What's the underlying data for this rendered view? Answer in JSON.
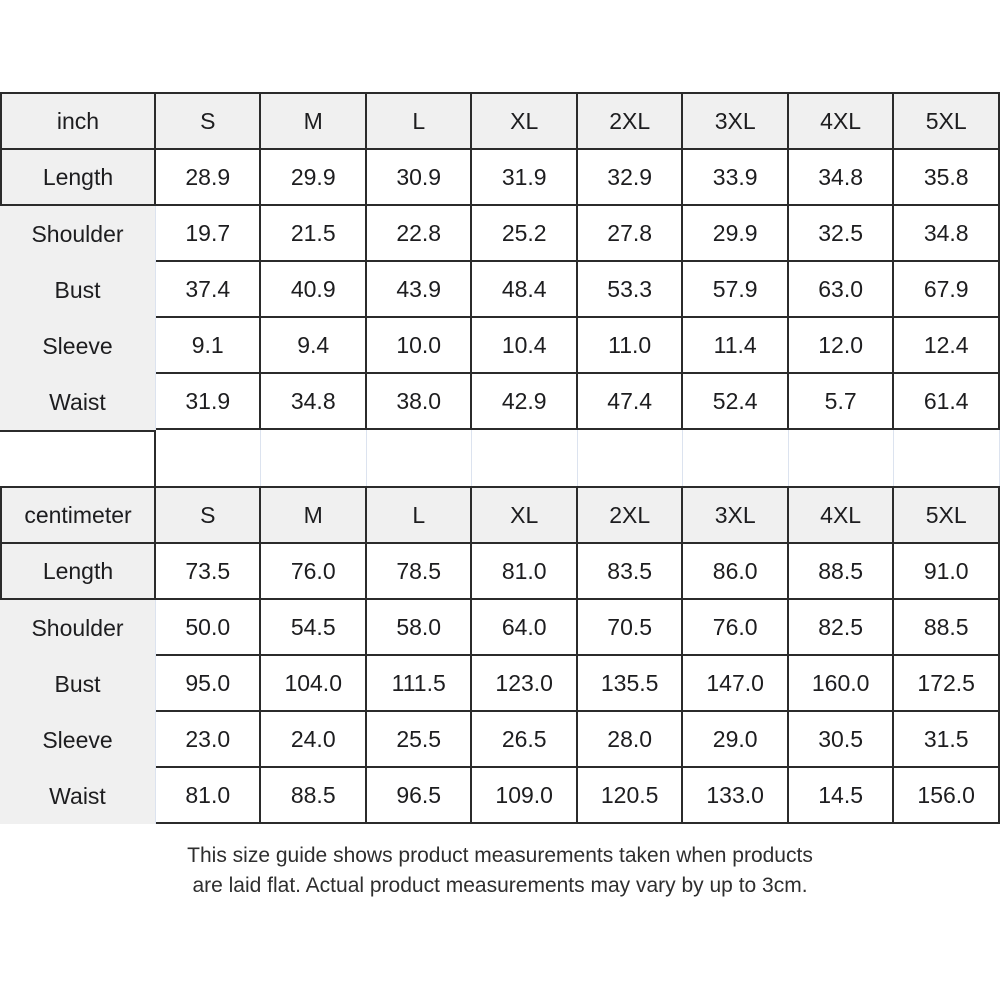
{
  "colors": {
    "header_background": "#f0f0f0",
    "dark_border": "#2b2b2b",
    "light_gridline": "#dce3ef",
    "text": "#1d1d1f"
  },
  "size_columns": [
    "S",
    "M",
    "L",
    "XL",
    "2XL",
    "3XL",
    "4XL",
    "5XL"
  ],
  "inch_table": {
    "unit_label": "inch",
    "rows": [
      {
        "label": "Length",
        "values": [
          "28.9",
          "29.9",
          "30.9",
          "31.9",
          "32.9",
          "33.9",
          "34.8",
          "35.8"
        ]
      },
      {
        "label": "Shoulder",
        "values": [
          "19.7",
          "21.5",
          "22.8",
          "25.2",
          "27.8",
          "29.9",
          "32.5",
          "34.8"
        ]
      },
      {
        "label": "Bust",
        "values": [
          "37.4",
          "40.9",
          "43.9",
          "48.4",
          "53.3",
          "57.9",
          "63.0",
          "67.9"
        ]
      },
      {
        "label": "Sleeve",
        "values": [
          "9.1",
          "9.4",
          "10.0",
          "10.4",
          "11.0",
          "11.4",
          "12.0",
          "12.4"
        ]
      },
      {
        "label": "Waist",
        "values": [
          "31.9",
          "34.8",
          "38.0",
          "42.9",
          "47.4",
          "52.4",
          "5.7",
          "61.4"
        ]
      }
    ]
  },
  "cm_table": {
    "unit_label": "centimeter",
    "rows": [
      {
        "label": "Length",
        "values": [
          "73.5",
          "76.0",
          "78.5",
          "81.0",
          "83.5",
          "86.0",
          "88.5",
          "91.0"
        ]
      },
      {
        "label": "Shoulder",
        "values": [
          "50.0",
          "54.5",
          "58.0",
          "64.0",
          "70.5",
          "76.0",
          "82.5",
          "88.5"
        ]
      },
      {
        "label": "Bust",
        "values": [
          "95.0",
          "104.0",
          "111.5",
          "123.0",
          "135.5",
          "147.0",
          "160.0",
          "172.5"
        ]
      },
      {
        "label": "Sleeve",
        "values": [
          "23.0",
          "24.0",
          "25.5",
          "26.5",
          "28.0",
          "29.0",
          "30.5",
          "31.5"
        ]
      },
      {
        "label": "Waist",
        "values": [
          "81.0",
          "88.5",
          "96.5",
          "109.0",
          "120.5",
          "133.0",
          "14.5",
          "156.0"
        ]
      }
    ]
  },
  "footer": {
    "line1": "This size guide shows product measurements taken when products",
    "line2": "are laid flat. Actual product measurements may vary by up to 3cm."
  }
}
